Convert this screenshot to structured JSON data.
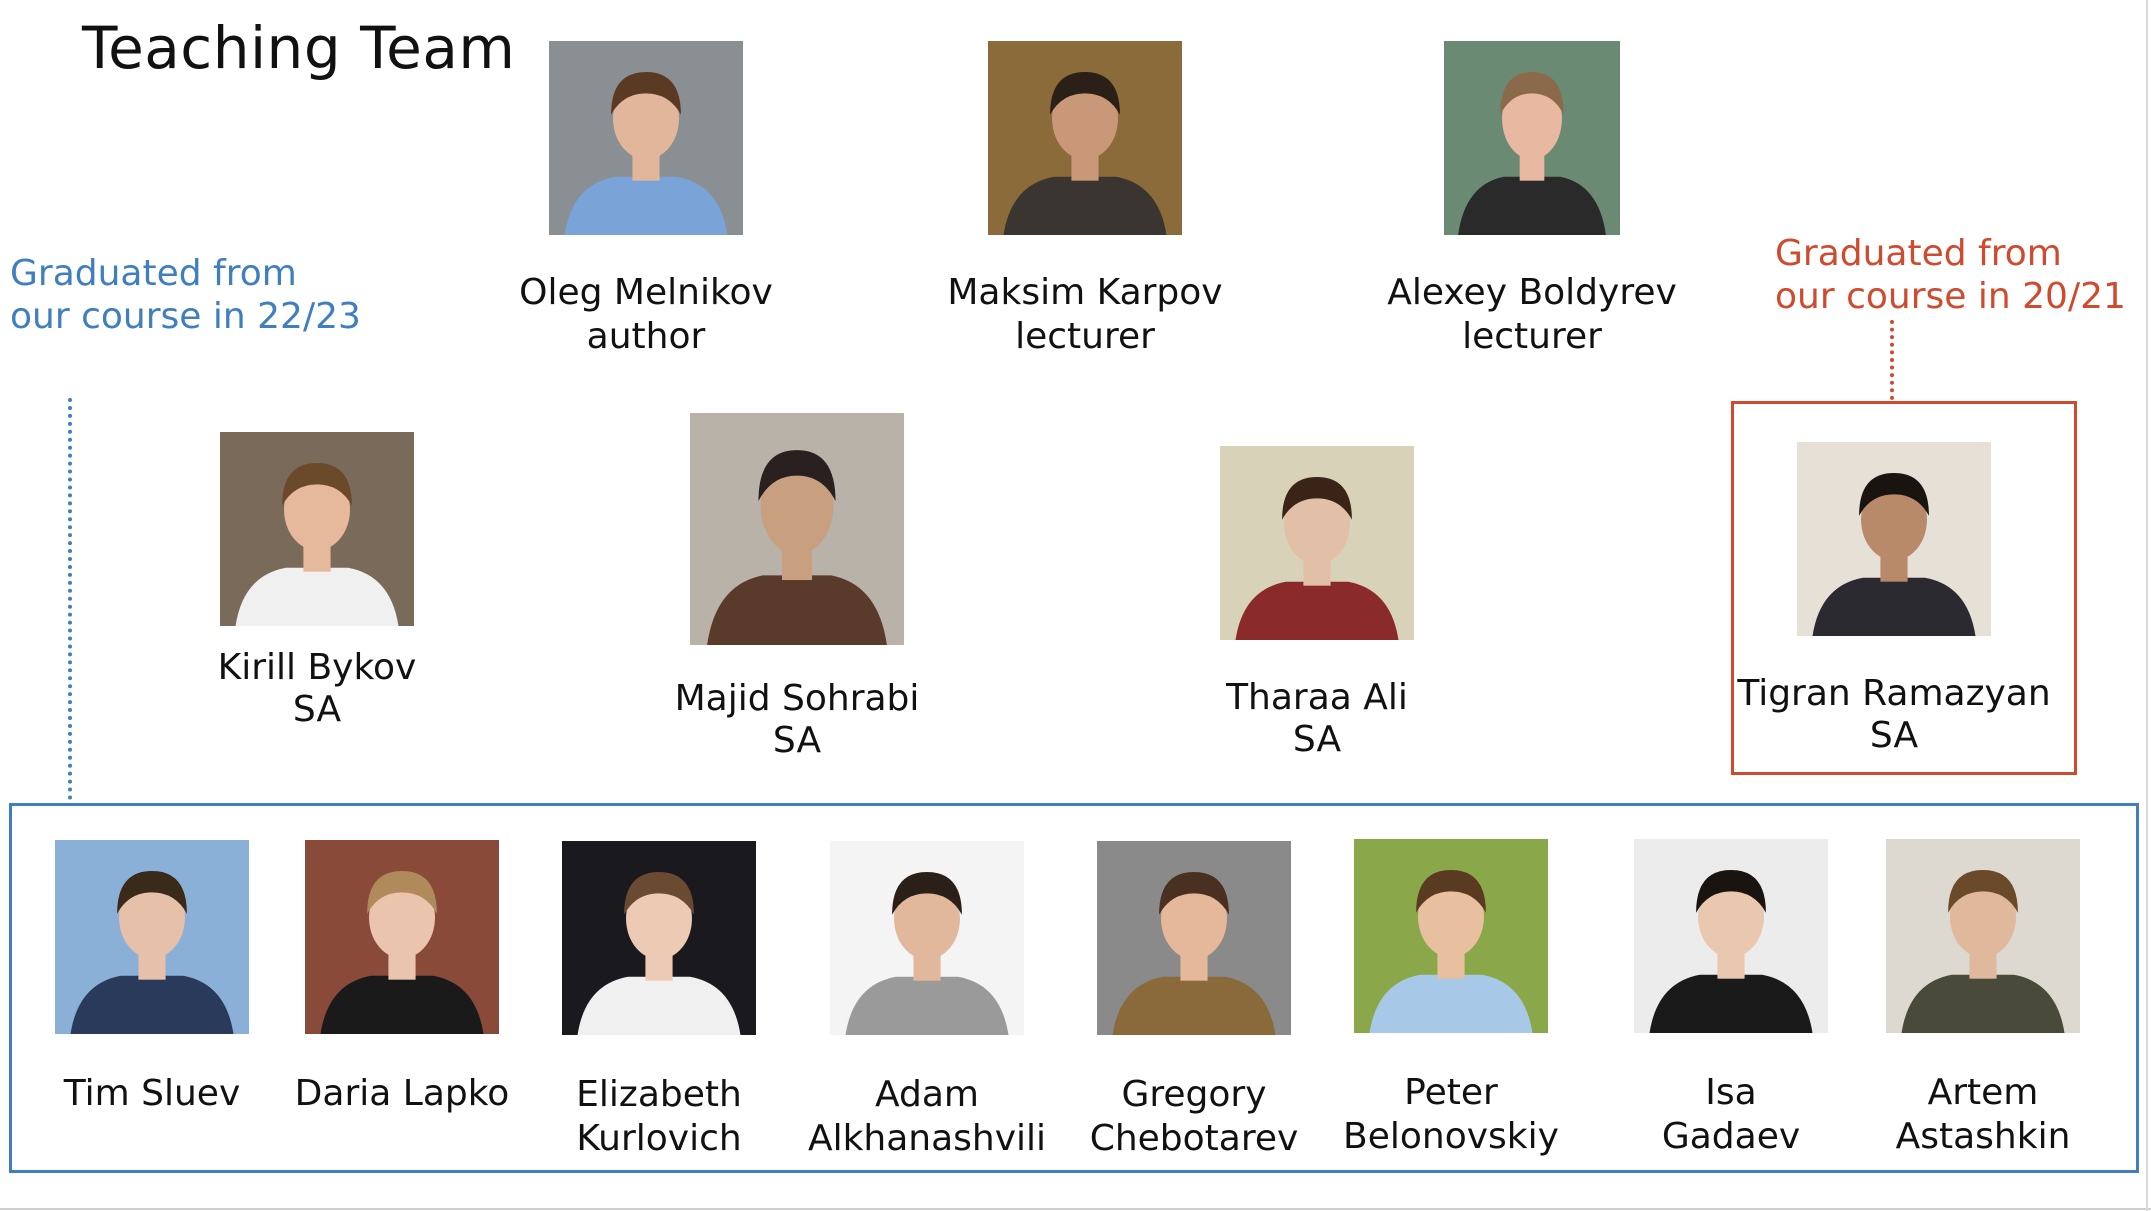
{
  "title": "Teaching Team",
  "notes": {
    "blue": [
      "Graduated from",
      "our course in 22/23"
    ],
    "red": [
      "Graduated from",
      "our course in 20/21"
    ]
  },
  "colors": {
    "blue_accent": "#3f7fc0",
    "red_accent": "#d04a2e"
  },
  "staff": [
    {
      "name": "Oleg Melnikov",
      "role": "author",
      "bg": "#8a8f94",
      "shirt": "#7aa3d8",
      "skin": "#e2b69a",
      "hair": "#5a3a22"
    },
    {
      "name": "Maksim Karpov",
      "role": "lecturer",
      "bg": "#8b6b3a",
      "shirt": "#3a3530",
      "skin": "#c89878",
      "hair": "#2a2018"
    },
    {
      "name": "Alexey Boldyrev",
      "role": "lecturer",
      "bg": "#6a8a74",
      "shirt": "#2a2a2a",
      "skin": "#e8b8a0",
      "hair": "#8a6a4a"
    }
  ],
  "assistants": [
    {
      "name": "Kirill Bykov",
      "role": "SA",
      "bg": "#7a6a5a",
      "shirt": "#f0f0f0",
      "skin": "#e6b89c",
      "hair": "#6a4a2a"
    },
    {
      "name": "Majid Sohrabi",
      "role": "SA",
      "bg": "#b8b2a8",
      "shirt": "#5a3a2a",
      "skin": "#c8a080",
      "hair": "#2a2020"
    },
    {
      "name": "Tharaa Ali",
      "role": "SA",
      "bg": "#d8d2b8",
      "shirt": "#8a2a2a",
      "skin": "#e2c0a8",
      "hair": "#3a2418"
    },
    {
      "name": "Tigran Ramazyan",
      "role": "SA",
      "bg": "#e6e0d6",
      "shirt": "#2a2a30",
      "skin": "#b88a6a",
      "hair": "#1a1410"
    }
  ],
  "graduates": [
    {
      "first": "Tim Sluev",
      "last": "",
      "bg": "#8ab0d8",
      "shirt": "#2a3a5a",
      "skin": "#e6c0a8",
      "hair": "#3a2a1a"
    },
    {
      "first": "Daria Lapko",
      "last": "",
      "bg": "#8a4a3a",
      "shirt": "#1a1a1a",
      "skin": "#eac4ac",
      "hair": "#b08a5a"
    },
    {
      "first": "Elizabeth",
      "last": "Kurlovich",
      "bg": "#1a1a1e",
      "shirt": "#f0f0f0",
      "skin": "#eccab4",
      "hair": "#6a4a30"
    },
    {
      "first": "Adam",
      "last": "Alkhanashvili",
      "bg": "#f4f4f4",
      "shirt": "#9a9a9a",
      "skin": "#e2b89c",
      "hair": "#2a2018"
    },
    {
      "first": "Gregory",
      "last": "Chebotarev",
      "bg": "#8a8a8a",
      "shirt": "#8a6a3a",
      "skin": "#e4b898",
      "hair": "#4a3020"
    },
    {
      "first": "Peter",
      "last": "Belonovskiy",
      "bg": "#8aa84a",
      "shirt": "#a8c8e8",
      "skin": "#e8c0a0",
      "hair": "#5a3a20"
    },
    {
      "first": "Isa",
      "last": "Gadaev",
      "bg": "#ececec",
      "shirt": "#1a1a1a",
      "skin": "#eac8b0",
      "hair": "#1a1410"
    },
    {
      "first": "Artem",
      "last": "Astashkin",
      "bg": "#ddd8d0",
      "shirt": "#4a4a3a",
      "skin": "#e0b89c",
      "hair": "#6a4a2a"
    }
  ]
}
